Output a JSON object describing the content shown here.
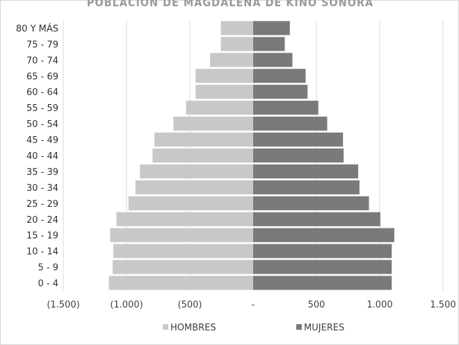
{
  "chart_data": {
    "type": "bar",
    "orientation": "horizontal",
    "chart_kind": "population-pyramid",
    "title": "",
    "xlabel": "",
    "ylabel": "",
    "xlim": [
      -1500,
      1500
    ],
    "categories": [
      "0 - 4",
      "5 - 9",
      "10 - 14",
      "15 - 19",
      "20 - 24",
      "25 - 29",
      "30 - 34",
      "35 - 39",
      "40 - 44",
      "45 - 49",
      "50 - 54",
      "55 - 59",
      "60 - 64",
      "65 - 69",
      "70 - 74",
      "75 - 79",
      "80 Y MÁS"
    ],
    "series": [
      {
        "name": "HOMBRES",
        "color": "#c8c8c8",
        "values": [
          -1140,
          -1110,
          -1105,
          -1130,
          -1080,
          -985,
          -930,
          -895,
          -795,
          -780,
          -630,
          -530,
          -455,
          -455,
          -340,
          -255,
          -255
        ]
      },
      {
        "name": "MUJERES",
        "color": "#7a7a7a",
        "values": [
          1095,
          1095,
          1095,
          1115,
          1005,
          915,
          840,
          830,
          715,
          710,
          585,
          515,
          430,
          415,
          310,
          250,
          290
        ]
      }
    ],
    "x_ticks": [
      "(1.500)",
      "(1.000)",
      "(500)",
      "-",
      "500",
      "1.000",
      "1.500"
    ],
    "grid": true,
    "legend_position": "bottom"
  },
  "title_text": "POBLACIÓN DE MAGDALENA DE KINO SONORA"
}
